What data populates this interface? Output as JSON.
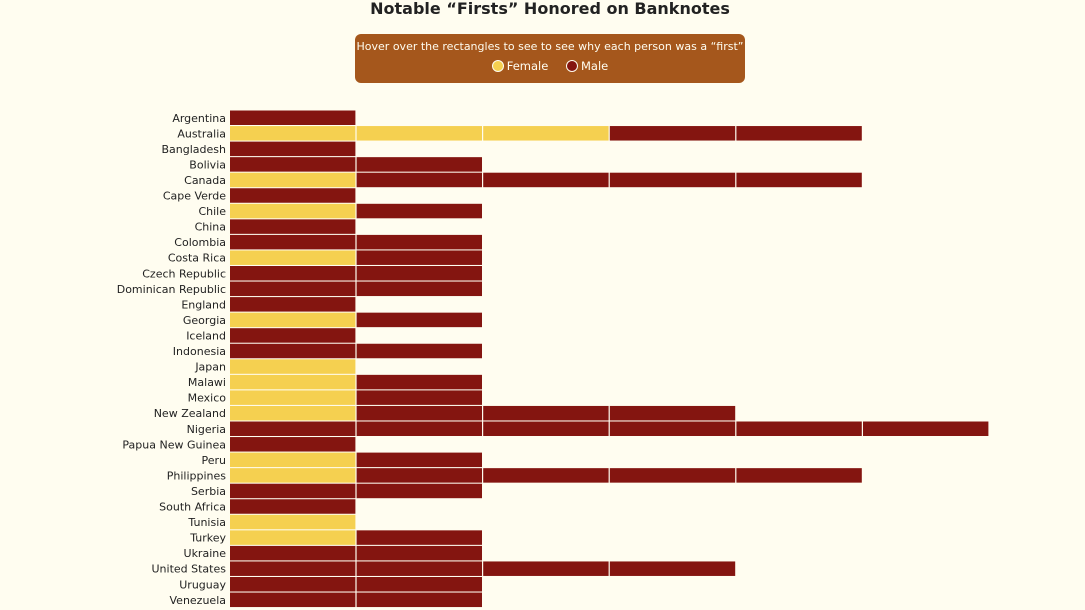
{
  "chart_data": {
    "type": "bar",
    "title": "Notable “Firsts” Honored on Banknotes",
    "legend_hint": "Hover over the rectangles to see to see why each person was a “first”",
    "legend": [
      {
        "label": "Female",
        "color": "#f5d050"
      },
      {
        "label": "Male",
        "color": "#841510"
      }
    ],
    "legend_placement": "top-center",
    "grid": false,
    "countries": [
      {
        "name": "Argentina",
        "people": [
          "M"
        ]
      },
      {
        "name": "Australia",
        "people": [
          "F",
          "F",
          "F",
          "M",
          "M"
        ]
      },
      {
        "name": "Bangladesh",
        "people": [
          "M"
        ]
      },
      {
        "name": "Bolivia",
        "people": [
          "M",
          "M"
        ]
      },
      {
        "name": "Canada",
        "people": [
          "F",
          "M",
          "M",
          "M",
          "M"
        ]
      },
      {
        "name": "Cape Verde",
        "people": [
          "M"
        ]
      },
      {
        "name": "Chile",
        "people": [
          "F",
          "M"
        ]
      },
      {
        "name": "China",
        "people": [
          "M"
        ]
      },
      {
        "name": "Colombia",
        "people": [
          "M",
          "M"
        ]
      },
      {
        "name": "Costa Rica",
        "people": [
          "F",
          "M"
        ]
      },
      {
        "name": "Czech Republic",
        "people": [
          "M",
          "M"
        ]
      },
      {
        "name": "Dominican Republic",
        "people": [
          "M",
          "M"
        ]
      },
      {
        "name": "England",
        "people": [
          "M"
        ]
      },
      {
        "name": "Georgia",
        "people": [
          "F",
          "M"
        ]
      },
      {
        "name": "Iceland",
        "people": [
          "M"
        ]
      },
      {
        "name": "Indonesia",
        "people": [
          "M",
          "M"
        ]
      },
      {
        "name": "Japan",
        "people": [
          "F"
        ]
      },
      {
        "name": "Malawi",
        "people": [
          "F",
          "M"
        ]
      },
      {
        "name": "Mexico",
        "people": [
          "F",
          "M"
        ]
      },
      {
        "name": "New Zealand",
        "people": [
          "F",
          "M",
          "M",
          "M"
        ]
      },
      {
        "name": "Nigeria",
        "people": [
          "M",
          "M",
          "M",
          "M",
          "M",
          "M"
        ]
      },
      {
        "name": "Papua New Guinea",
        "people": [
          "M"
        ]
      },
      {
        "name": "Peru",
        "people": [
          "F",
          "M"
        ]
      },
      {
        "name": "Philippines",
        "people": [
          "F",
          "M",
          "M",
          "M",
          "M"
        ]
      },
      {
        "name": "Serbia",
        "people": [
          "M",
          "M"
        ]
      },
      {
        "name": "South Africa",
        "people": [
          "M"
        ]
      },
      {
        "name": "Tunisia",
        "people": [
          "F"
        ]
      },
      {
        "name": "Turkey",
        "people": [
          "F",
          "M"
        ]
      },
      {
        "name": "Ukraine",
        "people": [
          "M",
          "M"
        ]
      },
      {
        "name": "United States",
        "people": [
          "M",
          "M",
          "M",
          "M"
        ]
      },
      {
        "name": "Uruguay",
        "people": [
          "M",
          "M"
        ]
      },
      {
        "name": "Venezuela",
        "people": [
          "M",
          "M"
        ]
      }
    ]
  }
}
